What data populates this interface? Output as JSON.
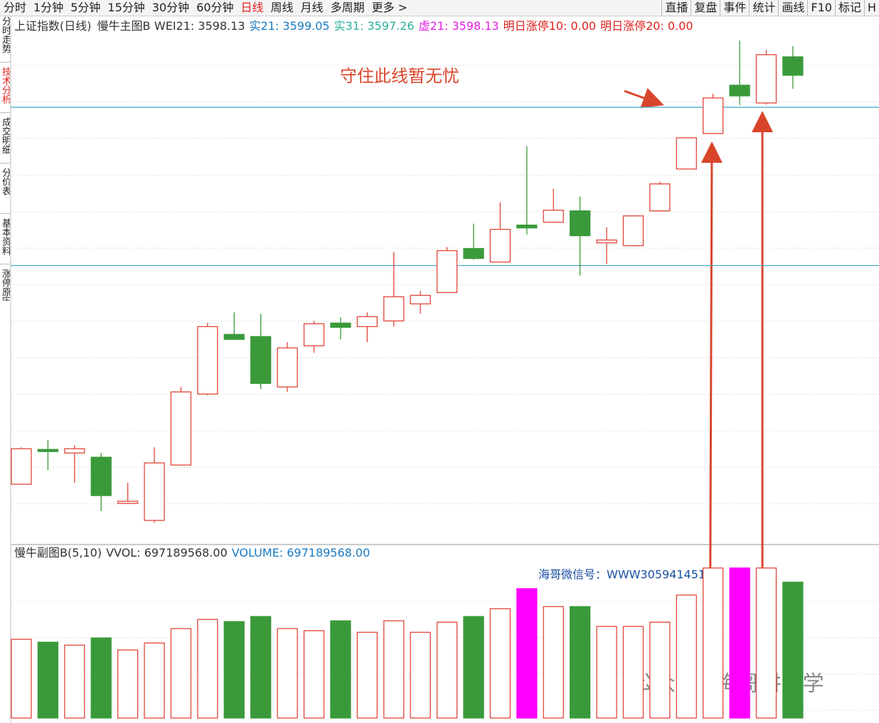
{
  "toolbar": {
    "periods": [
      {
        "label": "分时"
      },
      {
        "label": "1分钟"
      },
      {
        "label": "5分钟"
      },
      {
        "label": "15分钟"
      },
      {
        "label": "30分钟"
      },
      {
        "label": "60分钟"
      },
      {
        "label": "日线",
        "active": true
      },
      {
        "label": "周线"
      },
      {
        "label": "月线"
      },
      {
        "label": "多周期"
      },
      {
        "label": "更多 >"
      }
    ],
    "tools": [
      "直播",
      "复盘",
      "事件",
      "统计",
      "画线",
      "F10",
      "标记",
      "H"
    ]
  },
  "side_tabs": [
    {
      "label": "分时走势"
    },
    {
      "label": "技术分析",
      "active": true
    },
    {
      "label": "成交明细"
    },
    {
      "label": "分价表"
    },
    {
      "label": "基本资料"
    },
    {
      "label": "涨停原因"
    }
  ],
  "chart_data": [
    {
      "type": "candlestick",
      "title": "上证指数(日线)",
      "indicator": "慢牛主图B",
      "readouts": [
        {
          "text": "WEI21: 3598.13",
          "color": "#333333"
        },
        {
          "text": "实21: 3599.05",
          "color": "#1a7ac0"
        },
        {
          "text": "实31: 3597.26",
          "color": "#2bb09a"
        },
        {
          "text": "虚21: 3598.13",
          "color": "#e020e0"
        },
        {
          "text": "明日涨停10: 0.00",
          "color": "#e0201c"
        },
        {
          "text": "明日涨停20: 0.00",
          "color": "#e0201c"
        }
      ],
      "ylim": [
        3310,
        3673
      ],
      "open": [
        3352,
        3376.5,
        3374,
        3371,
        3338.5,
        3326.5,
        3365.5,
        3415.5,
        3457.5,
        3456,
        3420.5,
        3449.5,
        3465.5,
        3463,
        3467,
        3479,
        3487,
        3518,
        3508.5,
        3534.5,
        3536.5,
        3544.5,
        3522,
        3520,
        3544.5,
        3574,
        3599,
        3633,
        3620.5,
        3653
      ],
      "close": [
        3377,
        3375,
        3377,
        3344,
        3340,
        3367,
        3417,
        3463,
        3454,
        3423,
        3448,
        3465,
        3462.5,
        3470,
        3484,
        3485,
        3516.5,
        3511,
        3531.5,
        3532.5,
        3545,
        3527,
        3524,
        3541,
        3563.5,
        3596,
        3624,
        3625.5,
        3654.5,
        3640
      ],
      "high": [
        3378,
        3383,
        3379.5,
        3374,
        3353,
        3378,
        3420.5,
        3465.5,
        3473,
        3472,
        3452,
        3467,
        3469.5,
        3473,
        3515.5,
        3488,
        3519,
        3535.5,
        3550.5,
        3590,
        3560,
        3554.5,
        3533,
        3541,
        3565,
        3596.5,
        3627,
        3664.5,
        3658,
        3660.5
      ],
      "low": [
        3352,
        3362,
        3353,
        3333,
        3338,
        3325,
        3365.5,
        3414.5,
        3454,
        3419,
        3417,
        3444.5,
        3454,
        3452,
        3463,
        3472,
        3487,
        3510,
        3508.5,
        3528,
        3536.5,
        3499,
        3507,
        3519.5,
        3544,
        3574,
        3599,
        3619,
        3619.5,
        3630.5
      ],
      "hlines": [
        3617.5,
        3506
      ],
      "hline_color": "#3aa6c8",
      "up_color": "#e0463a",
      "down_color": "#3a9a3a",
      "annotation": "守住此线暂无忧"
    },
    {
      "type": "bar",
      "title": "慢牛副图B(5,10)",
      "readouts": [
        {
          "text": "VVOL: 697189568.00",
          "color": "#333333"
        },
        {
          "text": "VOLUME: 697189568.00",
          "color": "#1a7ac0"
        }
      ],
      "ylim": [
        0,
        810000000
      ],
      "values": [
        404000000,
        389000000,
        374000000,
        411000000,
        349000000,
        385000000,
        459000000,
        506000000,
        495000000,
        521000000,
        459000000,
        448000000,
        499000000,
        440000000,
        499000000,
        440000000,
        492000000,
        521000000,
        561000000,
        664000000,
        572000000,
        572000000,
        470000000,
        470000000,
        492000000,
        631000000,
        770000000,
        770000000,
        770000000,
        697189568
      ],
      "colors": [
        "#e0463a",
        "#3a9a3a",
        "#e0463a",
        "#3a9a3a",
        "#e0463a",
        "#e0463a",
        "#e0463a",
        "#e0463a",
        "#3a9a3a",
        "#3a9a3a",
        "#e0463a",
        "#e0463a",
        "#3a9a3a",
        "#e0463a",
        "#e0463a",
        "#e0463a",
        "#e0463a",
        "#3a9a3a",
        "#e0463a",
        "#ff00ff",
        "#e0463a",
        "#3a9a3a",
        "#e0463a",
        "#e0463a",
        "#e0463a",
        "#e0463a",
        "#e0463a",
        "#ff00ff",
        "#e0463a",
        "#3a9a3a"
      ],
      "annotation": "海哥微信号：WWW305941451"
    }
  ],
  "watermark": "公众号 · 海哥讲量学"
}
